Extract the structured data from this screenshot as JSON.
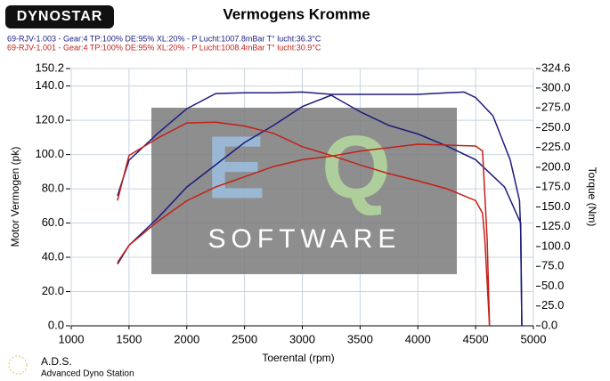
{
  "logo": "DYNOSTAR",
  "footer": {
    "title": "A.D.S.",
    "subtitle": "Advanced Dyno Station"
  },
  "watermark": {
    "big": [
      "E",
      "Q"
    ],
    "text": "SOFTWARE"
  },
  "chart_data": {
    "type": "line",
    "title": "Vermogens Kromme",
    "x_label": "Toerental (rpm)",
    "y_label": "Motor Vermogen (pk)",
    "y2_label": "Torque (Nm)",
    "legend": [
      {
        "label": "69-RJV-1.003 - Gear:4 TP:100% DE:95% XL:20%   - P Lucht:1007.8mBar T° lucht:36.3°C",
        "color": "#1c1c80"
      },
      {
        "label": "69-RJV-1.001 - Gear:4 TP:100% DE:95% XL:20%   - P Lucht:1008.4mBar T° lucht:30.9°C",
        "color": "#c42018"
      }
    ],
    "xlim": [
      1000,
      5000
    ],
    "xticks": [
      1000,
      1500,
      2000,
      2500,
      3000,
      3500,
      4000,
      4500,
      5000
    ],
    "ylim": [
      0,
      150.2
    ],
    "yticks": [
      {
        "value": 0,
        "label": "0.0"
      },
      {
        "value": 20,
        "label": "20.0"
      },
      {
        "value": 40,
        "label": "40.0"
      },
      {
        "value": 60,
        "label": "60.0"
      },
      {
        "value": 80,
        "label": "80.0"
      },
      {
        "value": 100,
        "label": "100.0"
      },
      {
        "value": 120,
        "label": "120.0"
      },
      {
        "value": 140,
        "label": "140.0"
      },
      150.2
    ],
    "y2lim": [
      0,
      324.6
    ],
    "y2ticks": [
      {
        "value": 0,
        "label": "0.0"
      },
      {
        "value": 25,
        "label": "25.0"
      },
      {
        "value": 50,
        "label": "50.0"
      },
      {
        "value": 75,
        "label": "75.0"
      },
      {
        "value": 100,
        "label": "100.0"
      },
      {
        "value": 125,
        "label": "125.0"
      },
      {
        "value": 150,
        "label": "150.0"
      },
      {
        "value": 175,
        "label": "175.0"
      },
      {
        "value": 200,
        "label": "200.0"
      },
      {
        "value": 225,
        "label": "225.0"
      },
      {
        "value": 250,
        "label": "250.0"
      },
      {
        "value": 275,
        "label": "275.0"
      },
      {
        "value": 300,
        "label": "300.0"
      },
      324.6
    ],
    "grid": true,
    "series": [
      {
        "color": "#1c1c80",
        "axis": "y",
        "x": [
          1400,
          1500,
          1750,
          2000,
          2250,
          2500,
          2750,
          3000,
          3250,
          3500,
          3750,
          4000,
          4250,
          4500,
          4750,
          4890,
          4900
        ],
        "values": [
          36,
          47,
          63,
          81,
          94,
          107,
          117,
          128,
          134.6,
          125,
          117,
          112,
          105,
          97,
          81,
          60,
          0
        ]
      },
      {
        "color": "#1c1c80",
        "axis": "y2",
        "x": [
          1400,
          1500,
          1750,
          2000,
          2250,
          2500,
          2750,
          3000,
          3250,
          3500,
          3750,
          4000,
          4250,
          4400,
          4500,
          4650,
          4800,
          4880,
          4890,
          4900
        ],
        "values": [
          164,
          209,
          243,
          274,
          293,
          294,
          294,
          295,
          292,
          292,
          292,
          292,
          294,
          295,
          288,
          265,
          209,
          158,
          119,
          0
        ]
      },
      {
        "color": "#c42018",
        "axis": "y",
        "x": [
          1400,
          1500,
          1750,
          2000,
          2250,
          2500,
          2750,
          3000,
          3250,
          3500,
          3750,
          4000,
          4250,
          4500,
          4560,
          4600,
          4620
        ],
        "values": [
          37,
          47,
          61,
          73,
          81,
          87,
          93,
          97,
          99,
          102,
          104,
          106,
          105.5,
          105,
          102,
          50,
          0
        ]
      },
      {
        "color": "#c42018",
        "axis": "y2",
        "x": [
          1400,
          1500,
          1750,
          2000,
          2250,
          2500,
          2750,
          3000,
          3250,
          3500,
          3750,
          4000,
          4250,
          4500,
          4560,
          4580,
          4620
        ],
        "values": [
          158,
          215,
          237,
          256,
          257,
          252,
          243,
          226,
          215,
          203,
          192,
          183,
          173,
          158,
          142,
          108,
          0
        ]
      }
    ]
  }
}
